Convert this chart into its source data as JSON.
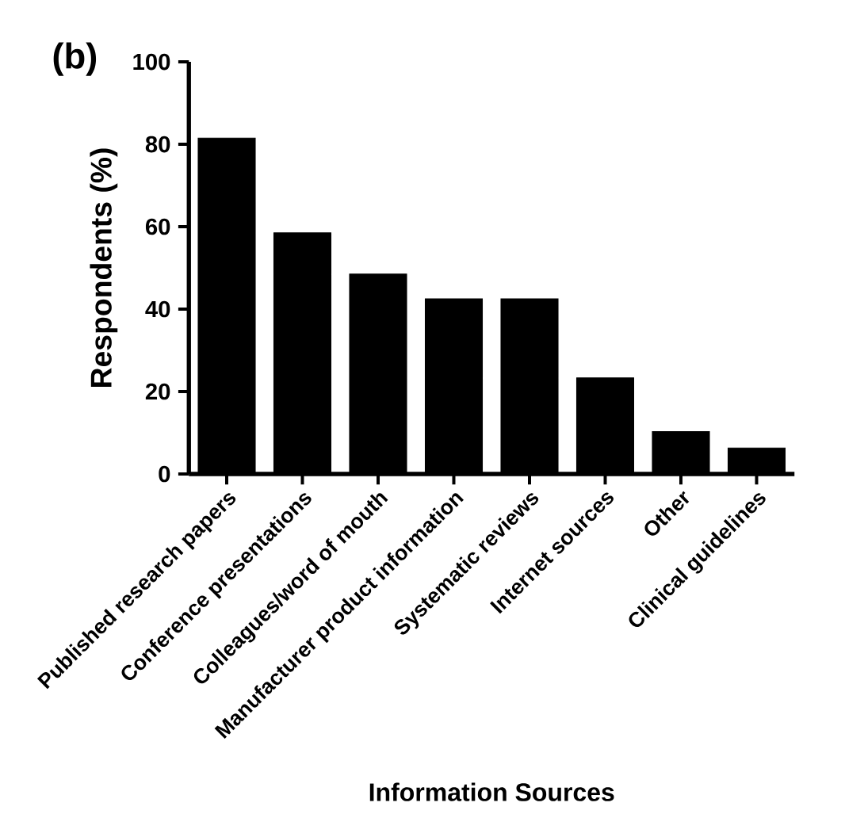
{
  "chart_data": {
    "type": "bar",
    "categories": [
      "Published research papers",
      "Conference presentations",
      "Colleagues/word of mouth",
      "Manufacturer product information",
      "Systematic reviews",
      "Internet sources",
      "Other",
      "Clinical guidelines"
    ],
    "values": [
      81.5,
      58.5,
      48.5,
      42.5,
      42.5,
      23.3,
      10.3,
      6.3
    ],
    "color": "#000000",
    "xlabel": "Information Sources",
    "ylabel": "Respondents (%)",
    "ylim": [
      0,
      100
    ],
    "yticks": [
      0,
      20,
      40,
      60,
      80,
      100
    ],
    "annotations": [
      "(b)"
    ],
    "grid": false
  }
}
